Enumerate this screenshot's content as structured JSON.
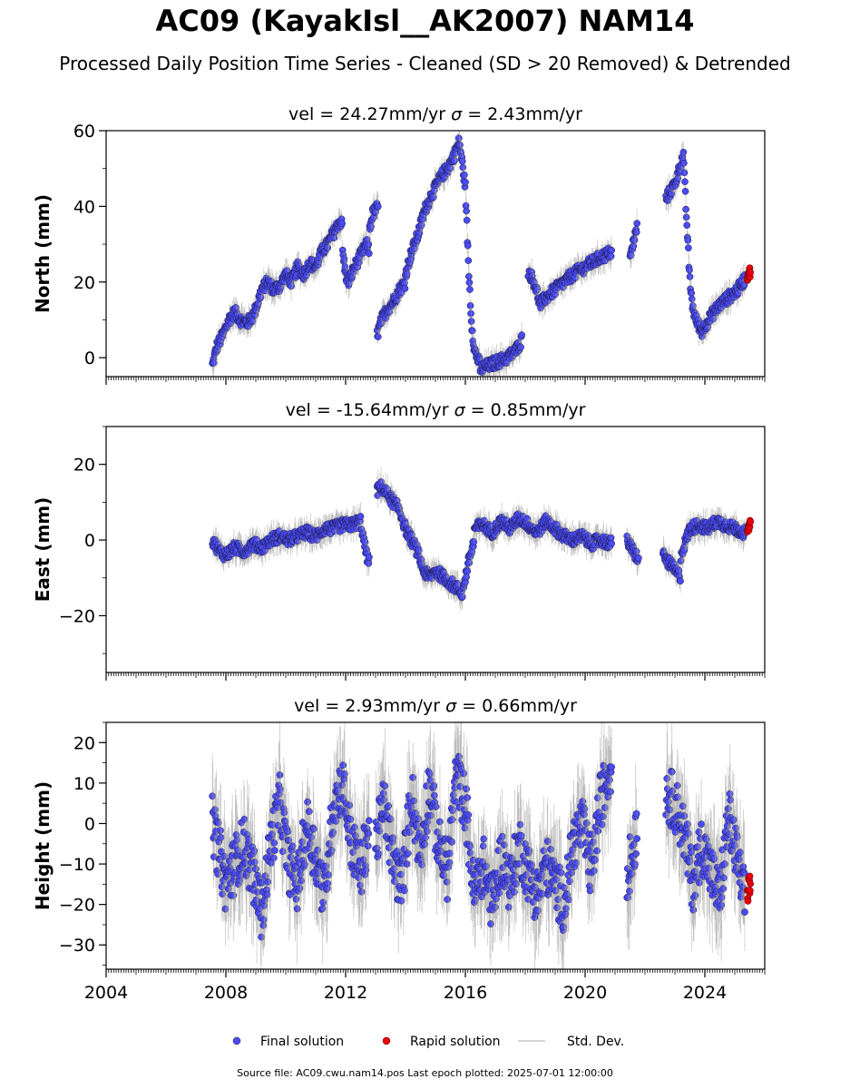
{
  "header": {
    "title": "AC09 (KayakIsl__AK2007) NAM14",
    "subtitle": "Processed Daily Position Time Series - Cleaned (SD > 20 Removed) & Detrended"
  },
  "footer": {
    "source": "Source file: AC09.cwu.nam14.pos  Last epoch plotted: 2025-07-01 12:00:00"
  },
  "legend": {
    "items": [
      {
        "label": "Final solution",
        "color": "#4a4af5"
      },
      {
        "label": "Rapid solution",
        "color": "#e8000b"
      },
      {
        "label": "Std. Dev.",
        "color": "#c8c8c8"
      }
    ]
  },
  "colors": {
    "final": "#4a4af5",
    "rapid": "#e8000b",
    "stddev": "#bdbdbd",
    "edge": "#1a1a40"
  },
  "chart_data": [
    {
      "type": "scatter",
      "title": "vel = 24.27mm/yr   σ = 2.43mm/yr",
      "vel_label": "vel = 24.27mm/yr",
      "sigma_label": "= 2.43mm/yr",
      "ylabel": "North (mm)",
      "xlim": [
        2004,
        2026
      ],
      "ylim": [
        -5,
        60
      ],
      "yticks": [
        0,
        20,
        40,
        60
      ],
      "segments": [
        {
          "x": [
            2007.55,
            2007.7,
            2007.9,
            2008.1,
            2008.3,
            2008.5,
            2008.7,
            2008.9,
            2009.0
          ],
          "y": [
            -2,
            3,
            6,
            10,
            12,
            10,
            9,
            11,
            13
          ]
        },
        {
          "x": [
            2009.0,
            2009.2,
            2009.4,
            2009.6,
            2009.8,
            2010.0,
            2010.2,
            2010.4,
            2010.6,
            2010.8,
            2011.0
          ],
          "y": [
            13,
            18,
            20,
            18,
            19,
            22,
            20,
            24,
            22,
            25,
            24
          ]
        },
        {
          "x": [
            2011.0,
            2011.2,
            2011.4,
            2011.6,
            2011.8,
            2011.9
          ],
          "y": [
            24,
            28,
            30,
            33,
            36,
            35
          ]
        },
        {
          "x": [
            2011.9,
            2012.0,
            2012.1,
            2012.3,
            2012.5,
            2012.7,
            2012.8
          ],
          "y": [
            28,
            22,
            20,
            24,
            27,
            30,
            28
          ]
        },
        {
          "x": [
            2012.8,
            2012.9,
            2013.1
          ],
          "y": [
            34,
            38,
            40
          ]
        },
        {
          "x": [
            2013.05,
            2013.2,
            2013.4,
            2013.6,
            2013.8,
            2014.0
          ],
          "y": [
            6,
            10,
            13,
            15,
            18,
            20
          ]
        },
        {
          "x": [
            2014.0,
            2014.2,
            2014.4,
            2014.6,
            2014.8,
            2015.0,
            2015.2,
            2015.4,
            2015.6,
            2015.8
          ],
          "y": [
            22,
            28,
            32,
            38,
            42,
            45,
            48,
            50,
            53,
            57
          ]
        },
        {
          "x": [
            2015.8,
            2016.0,
            2016.1,
            2016.2,
            2016.3,
            2016.5
          ],
          "y": [
            57,
            45,
            25,
            10,
            2,
            -2
          ]
        },
        {
          "x": [
            2016.5,
            2016.8,
            2017.1,
            2017.4,
            2017.7,
            2017.9
          ],
          "y": [
            -3,
            -2,
            -1,
            0,
            2,
            5
          ]
        },
        {
          "x": [
            2018.1,
            2018.3,
            2018.5,
            2018.7,
            2019.0,
            2019.3,
            2019.6,
            2020.0,
            2020.4,
            2020.9
          ],
          "y": [
            23,
            20,
            14,
            16,
            18,
            20,
            22,
            24,
            26,
            28
          ]
        },
        {
          "x": [
            2021.5,
            2021.6,
            2021.75
          ],
          "y": [
            26,
            30,
            35
          ]
        },
        {
          "x": [
            2022.7,
            2022.85,
            2023.0,
            2023.15,
            2023.3
          ],
          "y": [
            42,
            44,
            46,
            50,
            54
          ]
        },
        {
          "x": [
            2023.3,
            2023.4,
            2023.5,
            2023.6,
            2023.7
          ],
          "y": [
            50,
            35,
            20,
            13,
            10
          ]
        },
        {
          "x": [
            2023.7,
            2023.9,
            2024.2,
            2024.5,
            2024.8,
            2025.1,
            2025.35
          ],
          "y": [
            10,
            7,
            11,
            14,
            16,
            18,
            21
          ]
        }
      ],
      "rapid": {
        "x": [
          2025.42,
          2025.45,
          2025.48,
          2025.5
        ],
        "y": [
          21,
          22,
          23,
          22
        ]
      }
    },
    {
      "type": "scatter",
      "title": "vel = -15.64mm/yr   σ = 0.85mm/yr",
      "vel_label": "vel = -15.64mm/yr",
      "sigma_label": "= 0.85mm/yr",
      "ylabel": "East (mm)",
      "xlim": [
        2004,
        2026
      ],
      "ylim": [
        -35,
        30
      ],
      "yticks": [
        -20,
        0,
        20
      ],
      "segments": [
        {
          "x": [
            2007.55,
            2007.8,
            2008.0,
            2008.3,
            2008.6,
            2008.9,
            2009.2,
            2009.5
          ],
          "y": [
            0,
            -3,
            -4,
            -2,
            -3,
            -1,
            -2,
            0
          ]
        },
        {
          "x": [
            2009.5,
            2009.8,
            2010.1,
            2010.4,
            2010.7,
            2011.0,
            2011.3,
            2011.6,
            2011.9,
            2012.2,
            2012.5
          ],
          "y": [
            0,
            1,
            0,
            1,
            2,
            1,
            3,
            3,
            4,
            4,
            5
          ]
        },
        {
          "x": [
            2012.5,
            2012.6,
            2012.7,
            2012.8
          ],
          "y": [
            5,
            0,
            -4,
            -6
          ]
        },
        {
          "x": [
            2013.05,
            2013.2,
            2013.4,
            2013.6,
            2013.8,
            2014.0,
            2014.2,
            2014.4,
            2014.6,
            2014.8
          ],
          "y": [
            13,
            14,
            12,
            10,
            8,
            3,
            0,
            -3,
            -8,
            -10
          ]
        },
        {
          "x": [
            2014.8,
            2015.0,
            2015.3,
            2015.6,
            2015.9,
            2016.1,
            2016.3
          ],
          "y": [
            -10,
            -8,
            -10,
            -12,
            -14,
            -6,
            0
          ]
        },
        {
          "x": [
            2016.3,
            2016.6,
            2016.9,
            2017.2,
            2017.5,
            2017.8,
            2018.1,
            2018.4,
            2018.7,
            2019.0,
            2019.3,
            2019.6,
            2019.9,
            2020.2,
            2020.5,
            2020.9
          ],
          "y": [
            3,
            4,
            2,
            5,
            3,
            6,
            4,
            2,
            5,
            3,
            1,
            0,
            1,
            -1,
            0,
            -1
          ]
        },
        {
          "x": [
            2021.4,
            2021.6,
            2021.8
          ],
          "y": [
            0,
            -3,
            -5
          ]
        },
        {
          "x": [
            2022.6,
            2022.8,
            2023.0,
            2023.2
          ],
          "y": [
            -4,
            -6,
            -8,
            -10
          ]
        },
        {
          "x": [
            2023.2,
            2023.5,
            2023.8,
            2024.1,
            2024.4,
            2024.7,
            2025.0,
            2025.35
          ],
          "y": [
            -4,
            3,
            4,
            3,
            5,
            4,
            3,
            2
          ]
        }
      ],
      "rapid": {
        "x": [
          2025.42,
          2025.45,
          2025.48,
          2025.5
        ],
        "y": [
          2,
          3,
          4,
          5
        ]
      }
    },
    {
      "type": "scatter",
      "title": "vel = 2.93mm/yr   σ = 0.66mm/yr",
      "vel_label": "vel = 2.93mm/yr",
      "sigma_label": "= 0.66mm/yr",
      "ylabel": "Height (mm)",
      "xlim": [
        2004,
        2026
      ],
      "ylim": [
        -36,
        25
      ],
      "yticks": [
        -30,
        -20,
        -10,
        0,
        10,
        20
      ],
      "segments": [
        {
          "x": [
            2007.55,
            2007.8,
            2008.0,
            2008.3,
            2008.6,
            2008.9,
            2009.2,
            2009.5,
            2009.8,
            2010.1,
            2010.4,
            2010.7,
            2011.0,
            2011.3,
            2011.6,
            2011.9,
            2012.2,
            2012.5,
            2012.8
          ],
          "y": [
            0,
            -8,
            -15,
            -10,
            -5,
            -12,
            -22,
            -5,
            5,
            -10,
            -15,
            0,
            -8,
            -18,
            5,
            10,
            -5,
            -12,
            0
          ]
        },
        {
          "x": [
            2013.0,
            2013.3,
            2013.6,
            2013.9,
            2014.2,
            2014.5,
            2014.8,
            2015.1,
            2015.4,
            2015.7,
            2016.0,
            2016.3,
            2016.6,
            2016.9,
            2017.2,
            2017.5,
            2017.8,
            2018.1,
            2018.4,
            2018.7,
            2019.0,
            2019.3,
            2019.6,
            2019.9,
            2020.2,
            2020.5,
            2020.9
          ],
          "y": [
            -5,
            5,
            -10,
            -15,
            8,
            -8,
            10,
            -5,
            -12,
            12,
            5,
            -18,
            -10,
            -20,
            -8,
            -15,
            -5,
            -12,
            -18,
            -10,
            -15,
            -20,
            -5,
            0,
            -12,
            5,
            15
          ]
        },
        {
          "x": [
            2021.4,
            2021.6,
            2021.75
          ],
          "y": [
            -12,
            -8,
            2
          ]
        },
        {
          "x": [
            2022.7,
            2023.0,
            2023.3,
            2023.6,
            2023.9,
            2024.2,
            2024.5,
            2024.8,
            2025.1,
            2025.35
          ],
          "y": [
            8,
            5,
            -2,
            -15,
            -5,
            -12,
            -18,
            2,
            -10,
            -20
          ]
        }
      ],
      "rapid": {
        "x": [
          2025.42,
          2025.45,
          2025.48,
          2025.5
        ],
        "y": [
          -18,
          -15,
          -13,
          -16
        ]
      }
    }
  ],
  "xaxis": {
    "tick_values": [
      2004,
      2008,
      2012,
      2016,
      2020,
      2024
    ],
    "tick_labels": [
      "2004",
      "2008",
      "2012",
      "2016",
      "2020",
      "2024"
    ]
  }
}
